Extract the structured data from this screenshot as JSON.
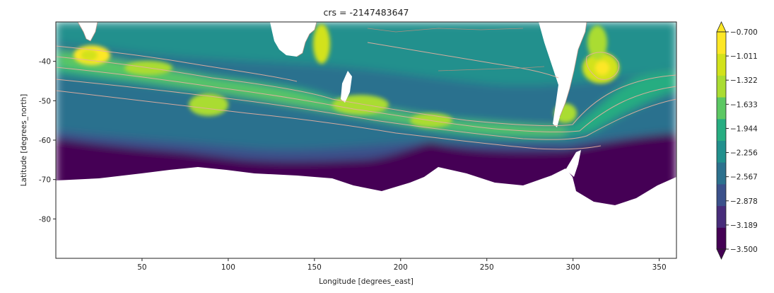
{
  "chart_data": {
    "type": "heatmap",
    "title": "crs = -2147483647",
    "xlabel": "Longitude [degrees_east]",
    "ylabel": "Latitude [degrees_north]",
    "xlim": [
      0,
      360
    ],
    "ylim": [
      -90,
      -30
    ],
    "x_ticks": [
      50,
      100,
      150,
      200,
      250,
      300,
      350
    ],
    "y_ticks": [
      -40,
      -50,
      -60,
      -70,
      -80
    ],
    "colorbar": {
      "levels": [
        "-3.500",
        "-3.189",
        "-2.878",
        "-2.567",
        "-2.256",
        "-1.944",
        "-1.633",
        "-1.322",
        "-1.011",
        "-0.700"
      ],
      "colors": [
        "#440154",
        "#472c7a",
        "#3b518b",
        "#2c718e",
        "#21908d",
        "#27ad81",
        "#5cc863",
        "#aadc32",
        "#d2e21b",
        "#fde725"
      ],
      "extend": "both",
      "colormap": "viridis"
    },
    "contour_color": "#e8b0a0",
    "land_color": "#ffffff"
  }
}
